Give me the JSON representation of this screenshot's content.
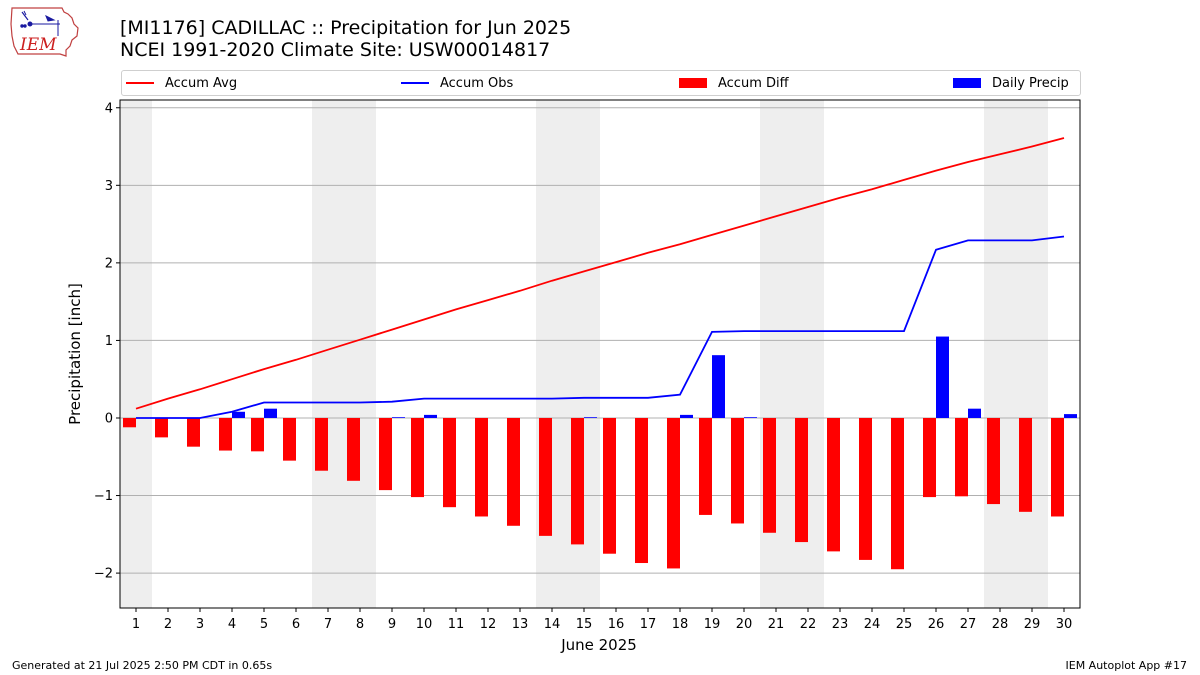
{
  "header": {
    "title_line1": "[MI1176] CADILLAC :: Precipitation for Jun 2025",
    "title_line2": "NCEI 1991-2020 Climate Site: USW00014817",
    "logo_text": "IEM"
  },
  "legend": {
    "accum_avg": "Accum Avg",
    "accum_obs": "Accum Obs",
    "accum_diff": "Accum Diff",
    "daily_precip": "Daily Precip"
  },
  "footer": {
    "generated": "Generated at 21 Jul 2025 2:50 PM CDT in 0.65s",
    "app": "IEM Autoplot App #17"
  },
  "colors": {
    "accum_avg": "#ff0000",
    "accum_obs": "#0000ff",
    "accum_diff": "#ff0000",
    "daily_precip": "#0000ff",
    "weekend_shade": "#eeeeee",
    "grid": "#b0b0b0"
  },
  "chart_data": {
    "type": "bar",
    "xlabel": "June 2025",
    "ylabel": "Precipitation [inch]",
    "ylim": [
      -2.45,
      4.1
    ],
    "yticks": [
      -2,
      -1,
      0,
      1,
      2,
      3,
      4
    ],
    "ytick_labels": [
      "−2",
      "−1",
      "0",
      "1",
      "2",
      "3",
      "4"
    ],
    "grid": "horizontal",
    "legend_position": "top",
    "categories": [
      "1",
      "2",
      "3",
      "4",
      "5",
      "6",
      "7",
      "8",
      "9",
      "10",
      "11",
      "12",
      "13",
      "14",
      "15",
      "16",
      "17",
      "18",
      "19",
      "20",
      "21",
      "22",
      "23",
      "24",
      "25",
      "26",
      "27",
      "28",
      "29",
      "30"
    ],
    "weekend_days": [
      1,
      7,
      8,
      14,
      15,
      21,
      22,
      28,
      29
    ],
    "series": [
      {
        "name": "Accum Avg",
        "kind": "line",
        "values": [
          0.12,
          0.25,
          0.37,
          0.5,
          0.63,
          0.75,
          0.88,
          1.01,
          1.14,
          1.27,
          1.4,
          1.52,
          1.64,
          1.77,
          1.89,
          2.01,
          2.13,
          2.24,
          2.36,
          2.48,
          2.6,
          2.72,
          2.84,
          2.95,
          3.07,
          3.19,
          3.3,
          3.4,
          3.5,
          3.61
        ]
      },
      {
        "name": "Accum Obs",
        "kind": "line",
        "values": [
          0.0,
          0.0,
          0.0,
          0.08,
          0.2,
          0.2,
          0.2,
          0.2,
          0.21,
          0.25,
          0.25,
          0.25,
          0.25,
          0.25,
          0.26,
          0.26,
          0.26,
          0.3,
          1.11,
          1.12,
          1.12,
          1.12,
          1.12,
          1.12,
          1.12,
          2.17,
          2.29,
          2.29,
          2.29,
          2.34
        ]
      },
      {
        "name": "Accum Diff",
        "kind": "bar",
        "values": [
          -0.12,
          -0.25,
          -0.37,
          -0.42,
          -0.43,
          -0.55,
          -0.68,
          -0.81,
          -0.93,
          -1.02,
          -1.15,
          -1.27,
          -1.39,
          -1.52,
          -1.63,
          -1.75,
          -1.87,
          -1.94,
          -1.25,
          -1.36,
          -1.48,
          -1.6,
          -1.72,
          -1.83,
          -1.95,
          -1.02,
          -1.01,
          -1.11,
          -1.21,
          -1.27
        ]
      },
      {
        "name": "Daily Precip",
        "kind": "bar",
        "values": [
          0.0,
          0.0,
          0.0,
          0.08,
          0.12,
          0.0,
          0.0,
          0.0,
          0.01,
          0.04,
          0.0,
          0.0,
          0.0,
          0.0,
          0.01,
          0.0,
          0.0,
          0.04,
          0.81,
          0.01,
          0.0,
          0.0,
          0.0,
          0.0,
          0.0,
          1.05,
          0.12,
          0.0,
          0.0,
          0.05
        ]
      }
    ]
  }
}
